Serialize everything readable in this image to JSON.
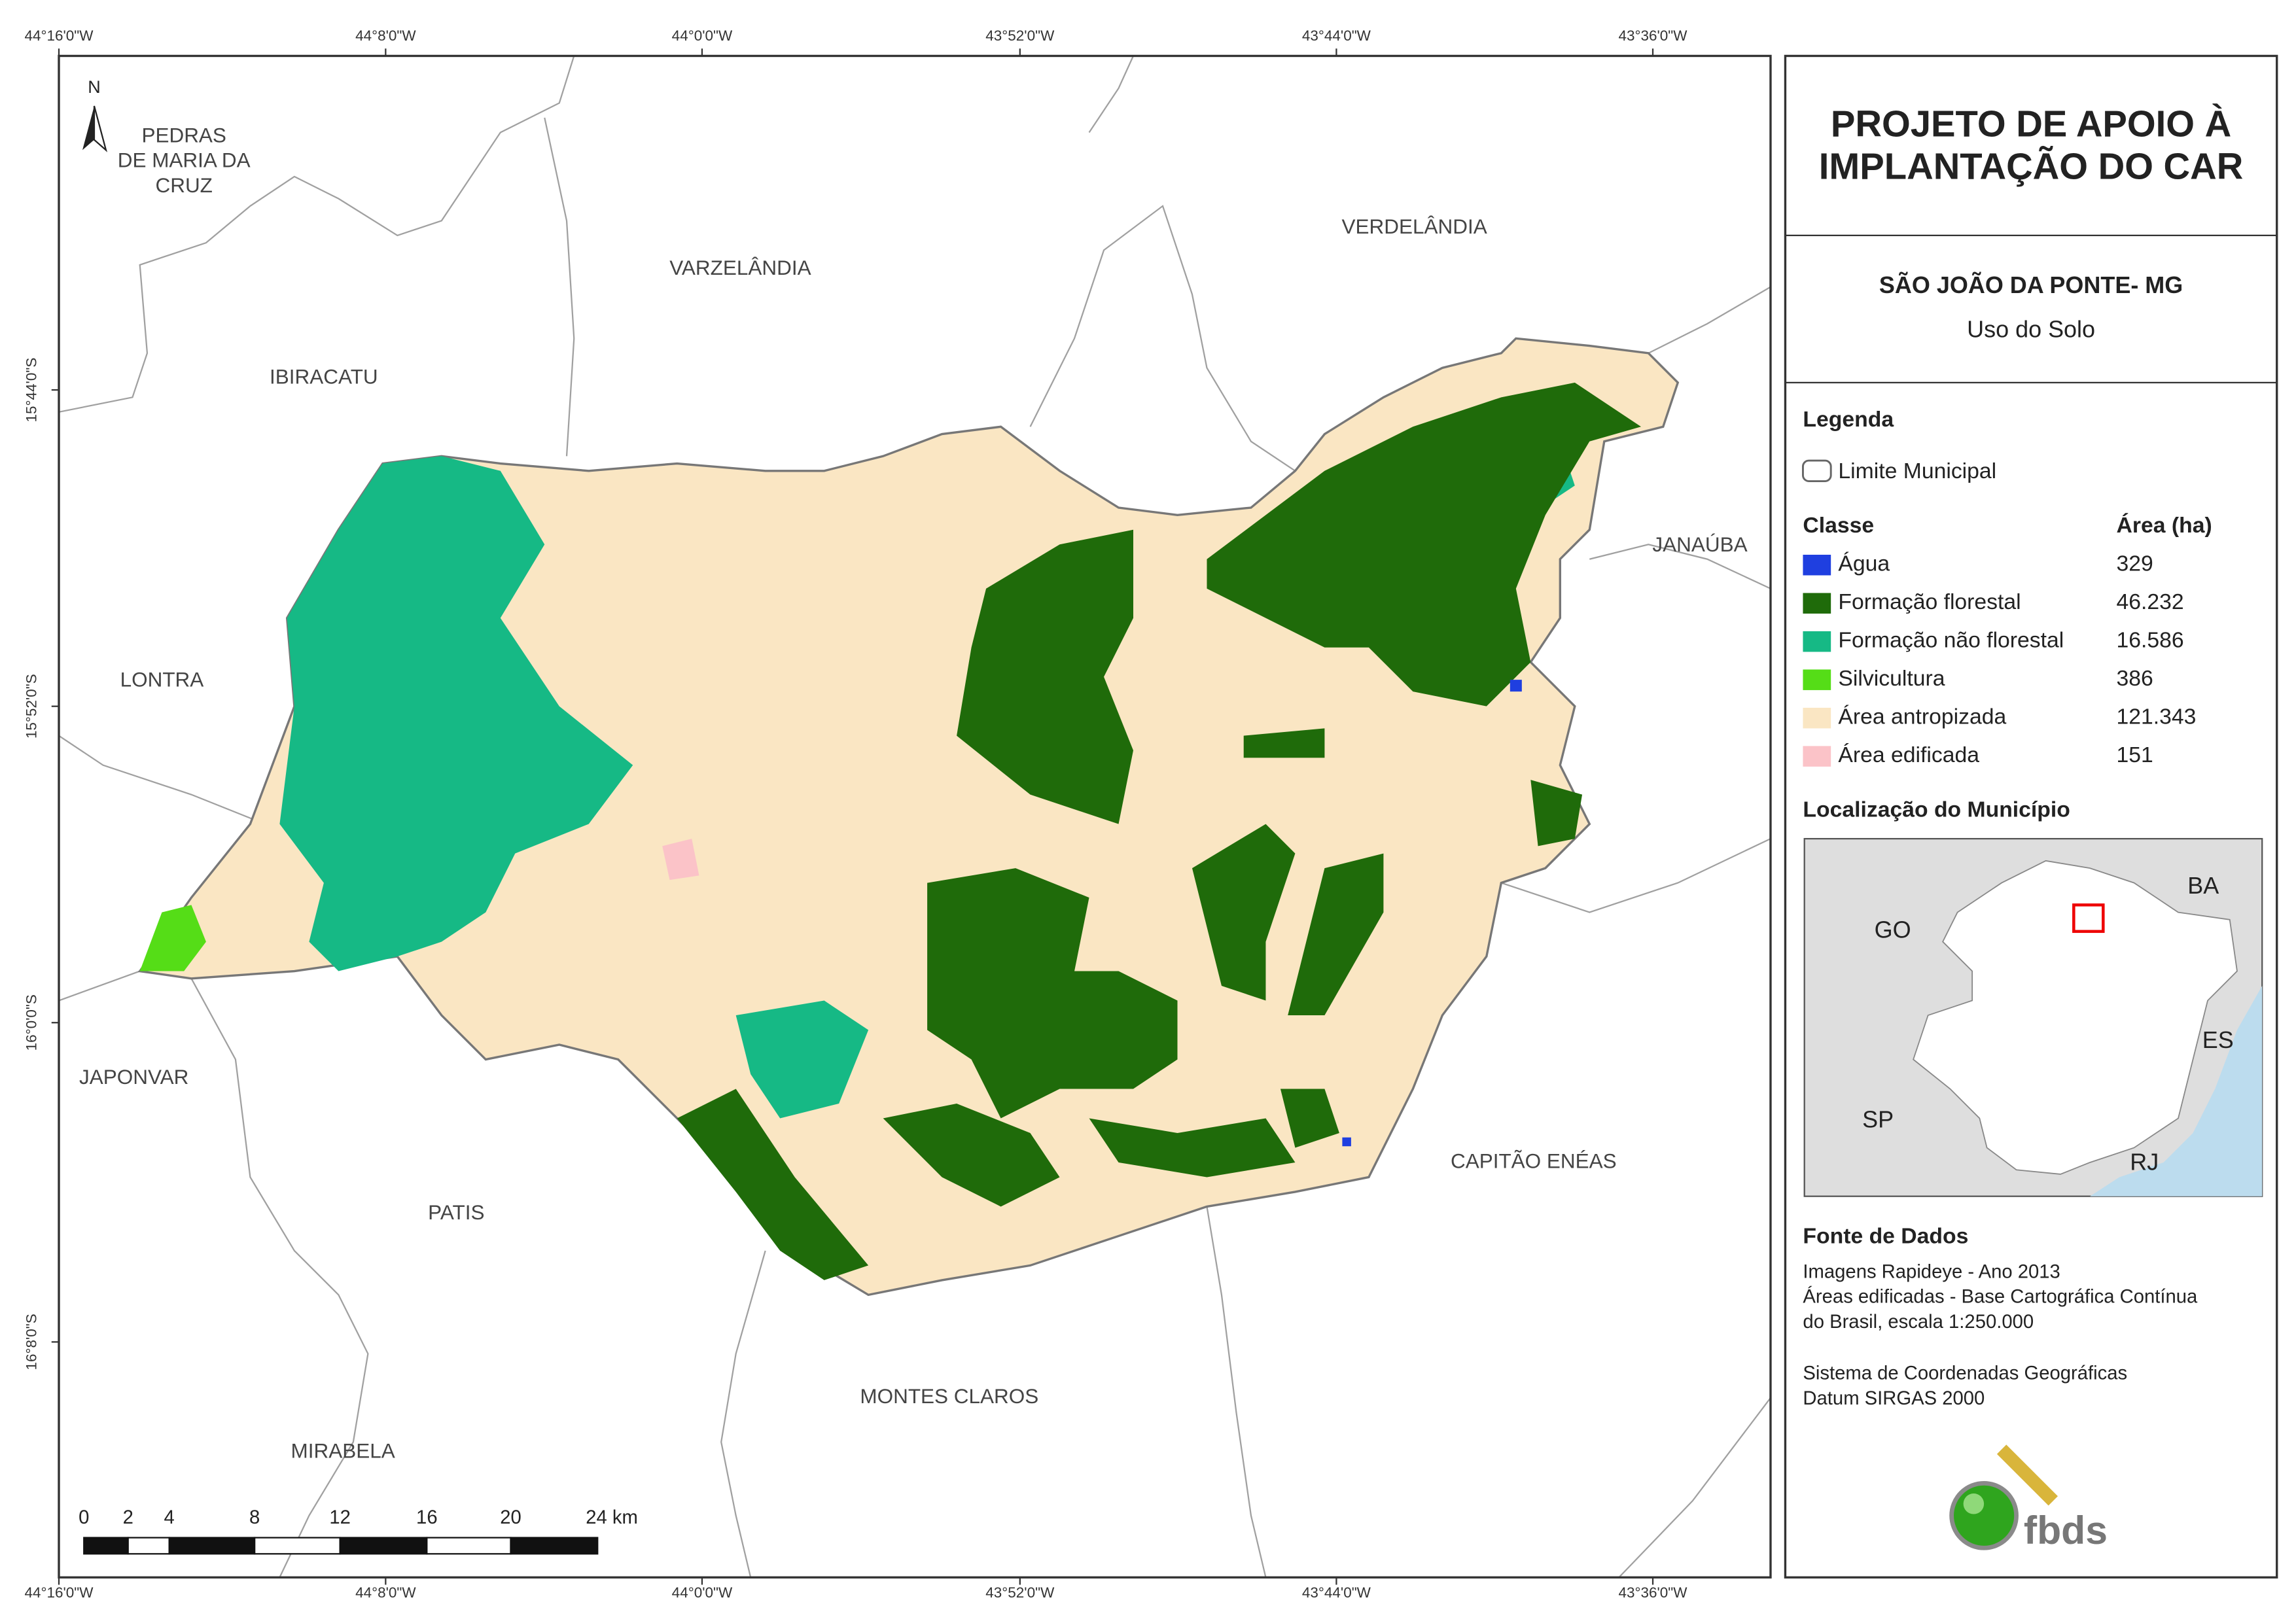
{
  "coordinates": {
    "longitude": [
      "44°16'0\"W",
      "44°8'0\"W",
      "44°0'0\"W",
      "43°52'0\"W",
      "43°44'0\"W",
      "43°36'0\"W"
    ],
    "latitude": [
      "15°44'0\"S",
      "15°52'0\"S",
      "16°0'0\"S",
      "16°8'0\"S"
    ]
  },
  "north": "N",
  "municipalities": [
    {
      "lines": [
        "PEDRAS",
        "DE MARIA DA",
        "CRUZ"
      ]
    },
    {
      "lines": [
        "VARZELÂNDIA"
      ]
    },
    {
      "lines": [
        "VERDELÂNDIA"
      ]
    },
    {
      "lines": [
        "IBIRACATU"
      ]
    },
    {
      "lines": [
        "JANAÚBA"
      ]
    },
    {
      "lines": [
        "LONTRA"
      ]
    },
    {
      "lines": [
        "JAPONVAR"
      ]
    },
    {
      "lines": [
        "PATIS"
      ]
    },
    {
      "lines": [
        "CAPITÃO ENÉAS"
      ]
    },
    {
      "lines": [
        "MONTES CLAROS"
      ]
    },
    {
      "lines": [
        "MIRABELA"
      ]
    }
  ],
  "scale_bar": {
    "labels": [
      "0",
      "2",
      "4",
      "8",
      "12",
      "16",
      "20",
      "24 km"
    ]
  },
  "panel": {
    "title": [
      "PROJETO DE APOIO À",
      "IMPLANTAÇÃO DO CAR"
    ],
    "municipality": "SÃO JOÃO DA PONTE- MG",
    "subtitle": "Uso do Solo"
  },
  "legend": {
    "title": "Legenda",
    "boundary": "Limite Municipal",
    "class_header": "Classe",
    "area_header": "Área (ha)",
    "rows": [
      {
        "label": "Água",
        "area": "329",
        "color": "#1f3fe0"
      },
      {
        "label": "Formação florestal",
        "area": "46.232",
        "color": "#1f6b0a"
      },
      {
        "label": "Formação não florestal",
        "area": "16.586",
        "color": "#16b985"
      },
      {
        "label": "Silvicultura",
        "area": "386",
        "color": "#55dd17"
      },
      {
        "label": "Área antropizada",
        "area": "121.343",
        "color": "#fae6c3"
      },
      {
        "label": "Área edificada",
        "area": "151",
        "color": "#fbc3c8"
      }
    ]
  },
  "location": {
    "title": "Localização do Município",
    "states": [
      "BA",
      "GO",
      "ES",
      "SP",
      "RJ"
    ]
  },
  "sources": {
    "title": "Fonte de Dados",
    "lines": [
      "Imagens Rapideye - Ano 2013",
      "Áreas edificadas - Base Cartográfica Contínua",
      "do Brasil, escala 1:250.000",
      "Sistema de Coordenadas Geográficas",
      "Datum SIRGAS 2000"
    ]
  },
  "logo": "fbds"
}
